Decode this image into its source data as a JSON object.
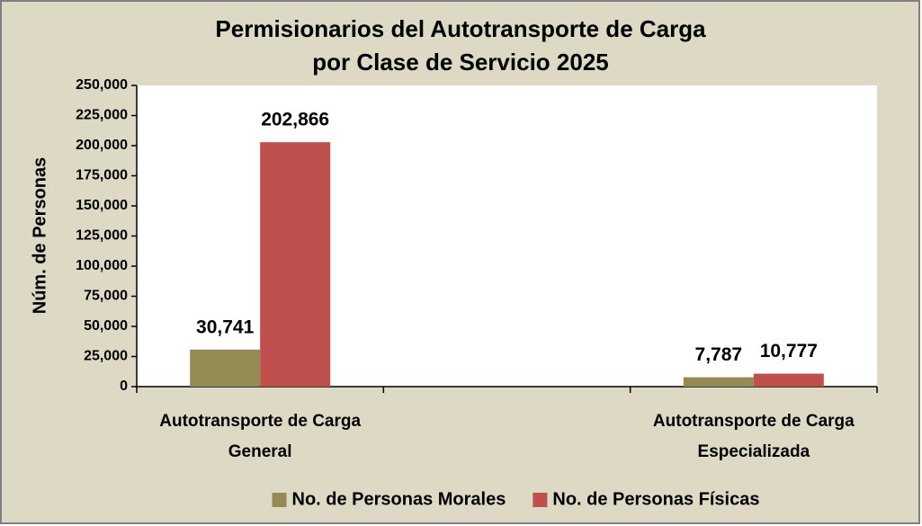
{
  "chart_data": {
    "type": "bar",
    "title": "Permisionarios del Autotransporte de Carga\npor Clase de Servicio 2025",
    "y_label": "Núm. de Personas",
    "categories": [
      "Autotransporte de Carga\nGeneral",
      null,
      "Autotransporte de Carga\nEspecializada"
    ],
    "series": [
      {
        "name": "No. de Personas Morales",
        "color": "#948a54",
        "values": [
          30741,
          null,
          7787
        ],
        "value_labels": [
          "30,741",
          null,
          "7,787"
        ]
      },
      {
        "name": "No. de Personas Físicas",
        "color": "#c0504d",
        "values": [
          202866,
          null,
          10777
        ],
        "value_labels": [
          "202,866",
          null,
          "10,777"
        ]
      }
    ],
    "ylim": [
      0,
      250000
    ],
    "yticks": [
      0,
      {
        "value": 25000,
        "label": "25,000"
      },
      {
        "value": 50000,
        "label": "50,000"
      },
      {
        "value": 75000,
        "label": "75,000"
      },
      {
        "value": 100000,
        "label": "100,000"
      },
      {
        "value": 125000,
        "label": "125,000"
      },
      {
        "value": 150000,
        "label": "150,000"
      },
      {
        "value": 175000,
        "label": "175,000"
      },
      {
        "value": 200000,
        "label": "200,000"
      },
      {
        "value": 225000,
        "label": "225,000"
      },
      {
        "value": 250000,
        "label": "250,000"
      }
    ],
    "legend": "bottom"
  }
}
